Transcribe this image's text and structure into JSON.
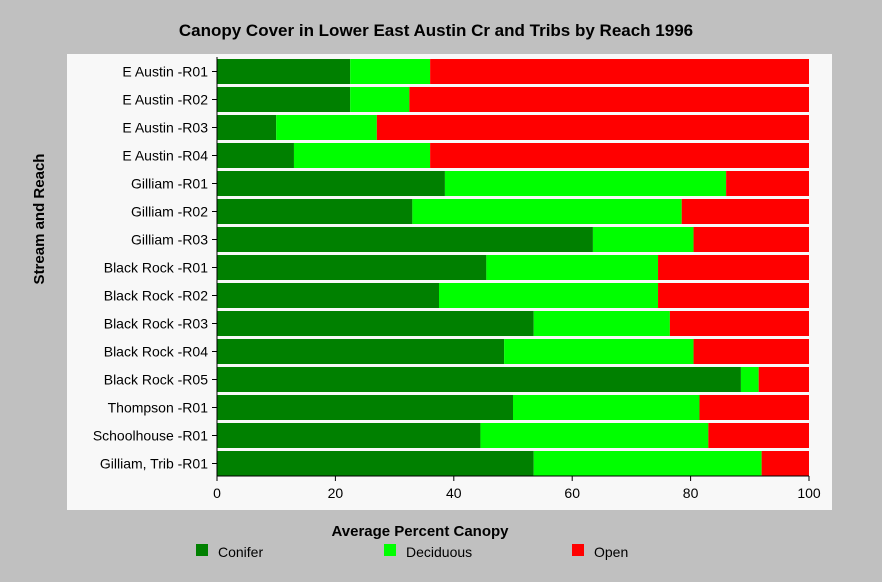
{
  "chart_data": {
    "type": "bar",
    "orientation": "horizontal",
    "stacked": true,
    "title": "Canopy Cover in Lower East Austin Cr and Tribs by Reach 1996",
    "xlabel": "Average Percent Canopy",
    "ylabel": "Stream and Reach",
    "xlim": [
      0,
      100
    ],
    "xticks": [
      0,
      20,
      40,
      60,
      80,
      100
    ],
    "grid": false,
    "legend_position": "bottom",
    "categories": [
      "E Austin -R01",
      "E Austin -R02",
      "E Austin -R03",
      "E Austin -R04",
      "Gilliam -R01",
      "Gilliam -R02",
      "Gilliam -R03",
      "Black Rock -R01",
      "Black Rock -R02",
      "Black Rock -R03",
      "Black Rock -R04",
      "Black Rock -R05",
      "Thompson -R01",
      "Schoolhouse -R01",
      "Gilliam, Trib -R01"
    ],
    "series": [
      {
        "name": "Conifer",
        "color": "#008000",
        "values": [
          22.5,
          22.5,
          10,
          13,
          38.5,
          33,
          63.5,
          45.5,
          37.5,
          53.5,
          48.5,
          88.5,
          50,
          44.5,
          53.5
        ]
      },
      {
        "name": "Deciduous",
        "color": "#00ff00",
        "values": [
          13.5,
          10,
          17,
          23,
          47.5,
          45.5,
          17,
          29,
          37,
          23,
          32,
          3,
          31.5,
          38.5,
          38.5
        ]
      },
      {
        "name": "Open",
        "color": "#ff0000",
        "values": [
          64,
          67.5,
          73,
          64,
          14,
          21.5,
          19.5,
          25.5,
          25.5,
          23.5,
          19.5,
          8.5,
          18.5,
          17,
          8
        ]
      }
    ]
  }
}
